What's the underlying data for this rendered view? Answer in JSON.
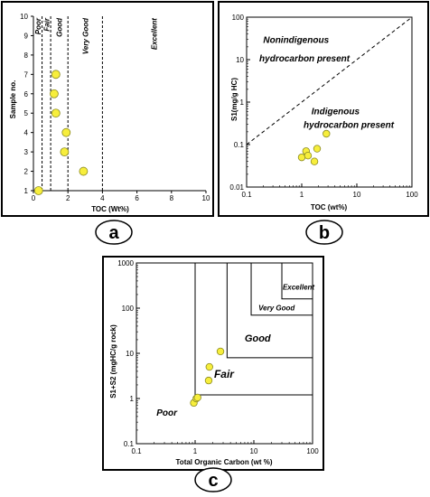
{
  "figure": {
    "panel_labels": [
      "a",
      "b",
      "c"
    ],
    "colors": {
      "point_fill": "#f7ee3c",
      "point_stroke": "#8a8a20",
      "frame": "#000000",
      "line": "#000000"
    }
  },
  "chart_data": [
    {
      "panel": "a",
      "type": "scatter",
      "xlabel": "TOC (Wt%)",
      "ylabel": "Sample no.",
      "xlim": [
        0,
        10
      ],
      "ylim": [
        1,
        10
      ],
      "x_ticks": [
        "0",
        "2",
        "4",
        "6",
        "8",
        "10"
      ],
      "y_ticks": [
        "1",
        "2",
        "3",
        "4",
        "5",
        "6",
        "7",
        "8",
        "9",
        "10"
      ],
      "thresholds": [
        0.5,
        1,
        2,
        4
      ],
      "class_labels": [
        "Poor",
        "Fair",
        "Good",
        "Very Good",
        "Excellent"
      ],
      "points": [
        {
          "x": 0.3,
          "y": 1
        },
        {
          "x": 2.9,
          "y": 2
        },
        {
          "x": 1.8,
          "y": 3
        },
        {
          "x": 1.9,
          "y": 4
        },
        {
          "x": 1.3,
          "y": 5
        },
        {
          "x": 1.2,
          "y": 6
        },
        {
          "x": 1.3,
          "y": 7
        }
      ],
      "grid": false
    },
    {
      "panel": "b",
      "type": "scatter",
      "scale": "log-log",
      "xlabel": "TOC (wt%)",
      "ylabel": "S1(mg/g HC)",
      "xlim": [
        0.1,
        100
      ],
      "ylim": [
        0.01,
        100
      ],
      "x_ticks": [
        "0.1",
        "1",
        "10",
        "100"
      ],
      "y_ticks": [
        "0.01",
        "0.1",
        "1",
        "10",
        "100"
      ],
      "region_labels": [
        "Nonindigenous",
        "hydrocarbon present",
        "Indigenous",
        "hydrocarbon present"
      ],
      "boundary": "dashed line y = x",
      "points": [
        {
          "x": 1.0,
          "y": 0.05
        },
        {
          "x": 1.2,
          "y": 0.07
        },
        {
          "x": 1.3,
          "y": 0.055
        },
        {
          "x": 1.7,
          "y": 0.04
        },
        {
          "x": 1.9,
          "y": 0.08
        },
        {
          "x": 2.8,
          "y": 0.18
        }
      ],
      "grid": false
    },
    {
      "panel": "c",
      "type": "scatter",
      "scale": "log-log",
      "xlabel": "Total Organic Carbon (wt %)",
      "ylabel": "S1+S2 (mgHC/g rock)",
      "xlim": [
        0.1,
        100
      ],
      "ylim": [
        0.1,
        1000
      ],
      "x_ticks": [
        "0.1",
        "1",
        "10",
        "100"
      ],
      "y_ticks": [
        "0.1",
        "1",
        "10",
        "100",
        "1000"
      ],
      "zone_labels": [
        "Poor",
        "Fair",
        "Good",
        "Very Good",
        "Excellent"
      ],
      "zone_bounds": [
        {
          "zone": "Poor",
          "toc": 1,
          "s1s2": 1.2
        },
        {
          "zone": "Fair",
          "toc": 3.5,
          "s1s2": 8
        },
        {
          "zone": "Good",
          "toc": 9,
          "s1s2": 70
        },
        {
          "zone": "Very Good",
          "toc": 30,
          "s1s2": 160
        }
      ],
      "points": [
        {
          "x": 0.95,
          "y": 0.8
        },
        {
          "x": 1.05,
          "y": 1.0
        },
        {
          "x": 1.1,
          "y": 1.05
        },
        {
          "x": 1.7,
          "y": 2.5
        },
        {
          "x": 1.75,
          "y": 5
        },
        {
          "x": 2.7,
          "y": 11
        }
      ],
      "grid": false
    }
  ]
}
